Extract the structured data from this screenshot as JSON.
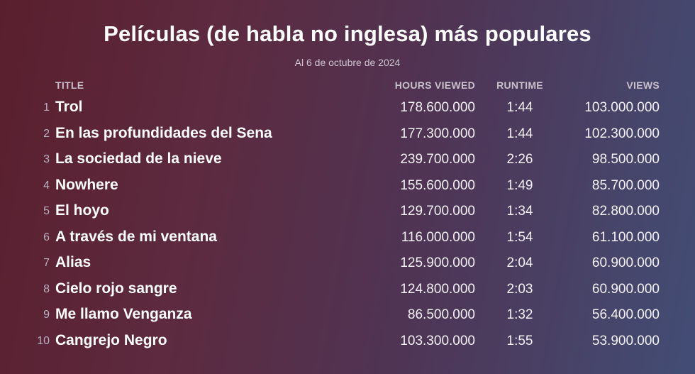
{
  "chart_data": {
    "type": "table",
    "title": "Películas (de habla no inglesa) más populares",
    "subtitle": "Al 6 de octubre de 2024",
    "columns": {
      "title": "TITLE",
      "hours": "HOURS VIEWED",
      "runtime": "RUNTIME",
      "views": "VIEWS"
    },
    "rows": [
      {
        "rank": "1",
        "title": "Trol",
        "hours": "178.600.000",
        "runtime": "1:44",
        "views": "103.000.000"
      },
      {
        "rank": "2",
        "title": "En las profundidades del Sena",
        "hours": "177.300.000",
        "runtime": "1:44",
        "views": "102.300.000"
      },
      {
        "rank": "3",
        "title": "La sociedad de la nieve",
        "hours": "239.700.000",
        "runtime": "2:26",
        "views": "98.500.000"
      },
      {
        "rank": "4",
        "title": "Nowhere",
        "hours": "155.600.000",
        "runtime": "1:49",
        "views": "85.700.000"
      },
      {
        "rank": "5",
        "title": "El hoyo",
        "hours": "129.700.000",
        "runtime": "1:34",
        "views": "82.800.000"
      },
      {
        "rank": "6",
        "title": "A través de mi ventana",
        "hours": "116.000.000",
        "runtime": "1:54",
        "views": "61.100.000"
      },
      {
        "rank": "7",
        "title": "Alias",
        "hours": "125.900.000",
        "runtime": "2:04",
        "views": "60.900.000"
      },
      {
        "rank": "8",
        "title": "Cielo rojo sangre",
        "hours": "124.800.000",
        "runtime": "2:03",
        "views": "60.900.000"
      },
      {
        "rank": "9",
        "title": "Me llamo Venganza",
        "hours": "86.500.000",
        "runtime": "1:32",
        "views": "56.400.000"
      },
      {
        "rank": "10",
        "title": "Cangrejo Negro",
        "hours": "103.300.000",
        "runtime": "1:55",
        "views": "53.900.000"
      }
    ]
  }
}
